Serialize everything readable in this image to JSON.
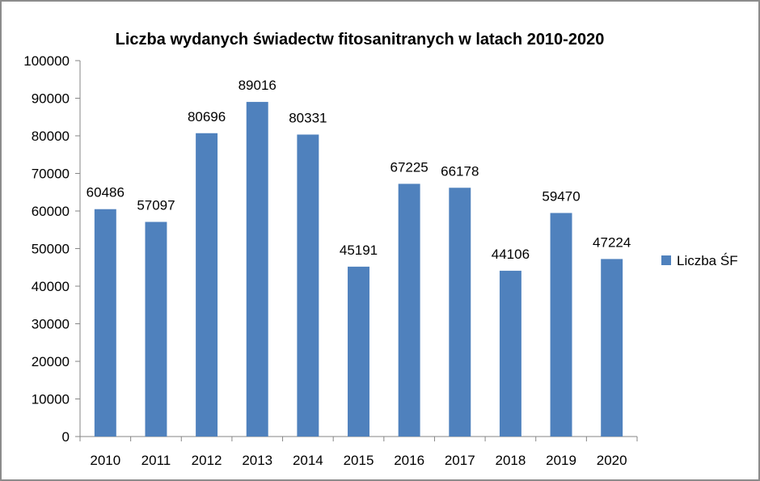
{
  "chart_data": {
    "type": "bar",
    "title": "Liczba wydanych świadectw fitosanitranych w latach 2010-2020",
    "xlabel": "",
    "ylabel": "",
    "categories": [
      "2010",
      "2011",
      "2012",
      "2013",
      "2014",
      "2015",
      "2016",
      "2017",
      "2018",
      "2019",
      "2020"
    ],
    "series": [
      {
        "name": "Liczba ŚF",
        "values": [
          60486,
          57097,
          80696,
          89016,
          80331,
          45191,
          67225,
          66178,
          44106,
          59470,
          47224
        ],
        "color": "#4f81bd"
      }
    ],
    "ylim": [
      0,
      100000
    ],
    "yticks": [
      0,
      10000,
      20000,
      30000,
      40000,
      50000,
      60000,
      70000,
      80000,
      90000,
      100000
    ],
    "grid": false,
    "data_labels": true,
    "legend_position": "right"
  }
}
